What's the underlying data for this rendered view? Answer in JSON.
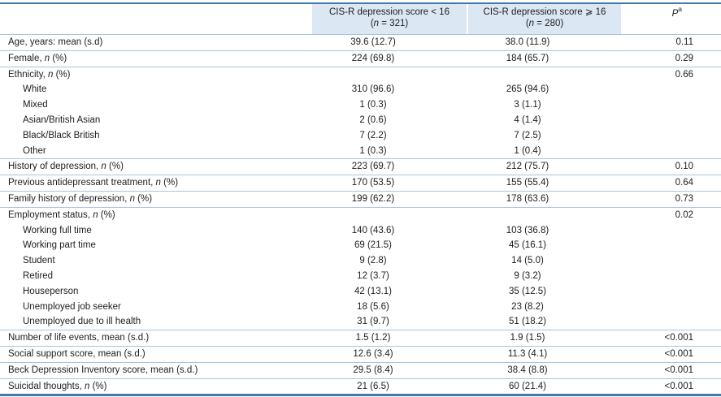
{
  "colors": {
    "rule": "#4578ad",
    "row_line": "#a6c5e2",
    "header_fill": "#dbe7f3",
    "text": "#1d1d1f"
  },
  "table": {
    "header": {
      "col_low": {
        "title": "CIS-R depression score < 16",
        "n_line": "(*n* = 321)"
      },
      "col_high": {
        "title": "CIS-R depression score ⩾ 16",
        "n_line": "(*n* = 280)"
      },
      "p": {
        "label": "*P*",
        "sup": "a"
      }
    },
    "blocks": [
      {
        "rows": [
          {
            "label": "Age, years: mean (s.d)",
            "low": "39.6 (12.7)",
            "high": "38.0 (11.9)",
            "p": "0.11"
          }
        ]
      },
      {
        "rows": [
          {
            "label": "Female, *n* (%)",
            "low": "224 (69.8)",
            "high": "184 (65.7)",
            "p": "0.29"
          }
        ]
      },
      {
        "rows": [
          {
            "label": "Ethnicity, *n* (%)",
            "low": "",
            "high": "",
            "p": "0.66"
          },
          {
            "label": "White",
            "indent": true,
            "low": "310 (96.6)",
            "high": "265 (94.6)",
            "p": ""
          },
          {
            "label": "Mixed",
            "indent": true,
            "low": "1 (0.3)",
            "high": "3 (1.1)",
            "p": ""
          },
          {
            "label": "Asian/British Asian",
            "indent": true,
            "low": "2 (0.6)",
            "high": "4 (1.4)",
            "p": ""
          },
          {
            "label": "Black/Black British",
            "indent": true,
            "low": "7 (2.2)",
            "high": "7 (2.5)",
            "p": ""
          },
          {
            "label": "Other",
            "indent": true,
            "low": "1 (0.3)",
            "high": "1 (0.4)",
            "p": ""
          }
        ]
      },
      {
        "rows": [
          {
            "label": "History of depression, *n* (%)",
            "low": "223 (69.7)",
            "high": "212 (75.7)",
            "p": "0.10"
          }
        ]
      },
      {
        "rows": [
          {
            "label": "Previous antidepressant treatment, *n* (%)",
            "low": "170 (53.5)",
            "high": "155 (55.4)",
            "p": "0.64"
          }
        ]
      },
      {
        "rows": [
          {
            "label": "Family history of depression, *n* (%)",
            "low": "199 (62.2)",
            "high": "178 (63.6)",
            "p": "0.73"
          }
        ]
      },
      {
        "rows": [
          {
            "label": "Employment status, *n* (%)",
            "low": "",
            "high": "",
            "p": "0.02"
          },
          {
            "label": "Working full time",
            "indent": true,
            "low": "140 (43.6)",
            "high": "103 (36.8)",
            "p": ""
          },
          {
            "label": "Working part time",
            "indent": true,
            "low": "69 (21.5)",
            "high": "45 (16.1)",
            "p": ""
          },
          {
            "label": "Student",
            "indent": true,
            "low": "9 (2.8)",
            "high": "14 (5.0)",
            "p": ""
          },
          {
            "label": "Retired",
            "indent": true,
            "low": "12 (3.7)",
            "high": "9 (3.2)",
            "p": ""
          },
          {
            "label": "Houseperson",
            "indent": true,
            "low": "42 (13.1)",
            "high": "35 (12.5)",
            "p": ""
          },
          {
            "label": "Unemployed job seeker",
            "indent": true,
            "low": "18 (5.6)",
            "high": "23 (8.2)",
            "p": ""
          },
          {
            "label": "Unemployed due to ill health",
            "indent": true,
            "low": "31 (9.7)",
            "high": "51 (18.2)",
            "p": ""
          }
        ]
      },
      {
        "rows": [
          {
            "label": "Number of life events, mean (s.d.)",
            "low": "1.5 (1.2)",
            "high": "1.9 (1.5)",
            "p": "<0.001"
          }
        ]
      },
      {
        "rows": [
          {
            "label": "Social support score, mean (s.d.)",
            "low": "12.6 (3.4)",
            "high": "11.3 (4.1)",
            "p": "<0.001"
          }
        ]
      },
      {
        "rows": [
          {
            "label": "Beck Depression Inventory score, mean (s.d.)",
            "low": "29.5 (8.4)",
            "high": "38.4 (8.8)",
            "p": "<0.001"
          }
        ]
      },
      {
        "rows": [
          {
            "label": "Suicidal thoughts, *n* (%)",
            "low": "21 (6.5)",
            "high": "60 (21.4)",
            "p": "<0.001"
          }
        ]
      }
    ]
  }
}
